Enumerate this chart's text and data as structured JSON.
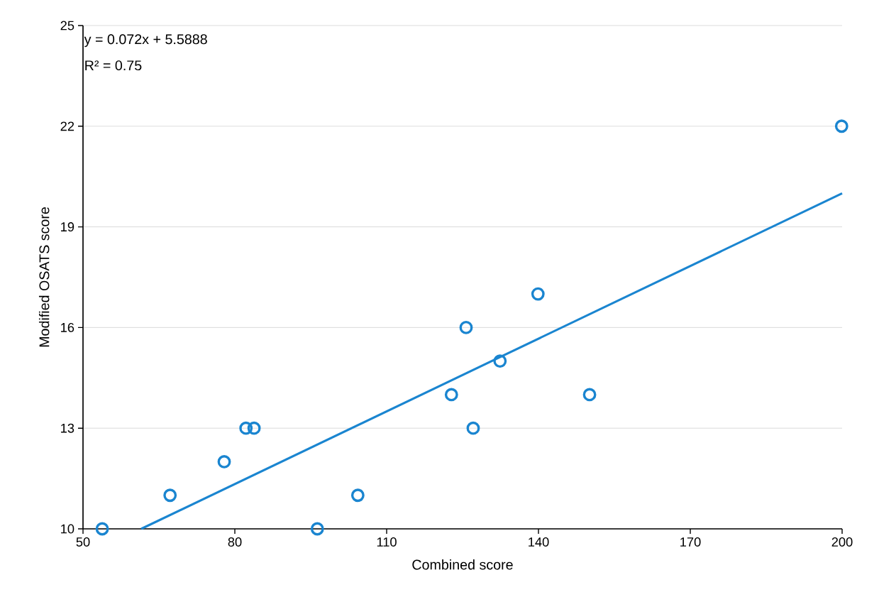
{
  "chart_data": {
    "type": "scatter",
    "xlabel": "Combined score",
    "ylabel": "Modified OSATS score",
    "xlim": [
      50,
      200
    ],
    "xticks": [
      50,
      80,
      110,
      140,
      170,
      200
    ],
    "ylim": [
      10,
      25
    ],
    "yticks": [
      10,
      13,
      16,
      19,
      22,
      25
    ],
    "grid": "y",
    "marker": "circle",
    "annotations": [
      "y = 0.072x + 5.5888",
      "R² = 0.75"
    ],
    "series": [
      {
        "color": "#1a85d0",
        "x": [
          53.8,
          67.2,
          77.9,
          82.2,
          83.8,
          96.3,
          104.3,
          122.8,
          125.7,
          127.1,
          132.4,
          139.9,
          150.1,
          199.9
        ],
        "values": [
          10,
          11,
          12,
          13,
          13,
          10,
          11,
          14,
          16,
          13,
          15,
          17,
          14,
          22
        ]
      },
      {
        "type": "line",
        "color": "#1a85d0",
        "marker": "none",
        "line_style": "solid",
        "x": [
          61.5,
          200
        ],
        "values": [
          10,
          20
        ]
      }
    ]
  }
}
